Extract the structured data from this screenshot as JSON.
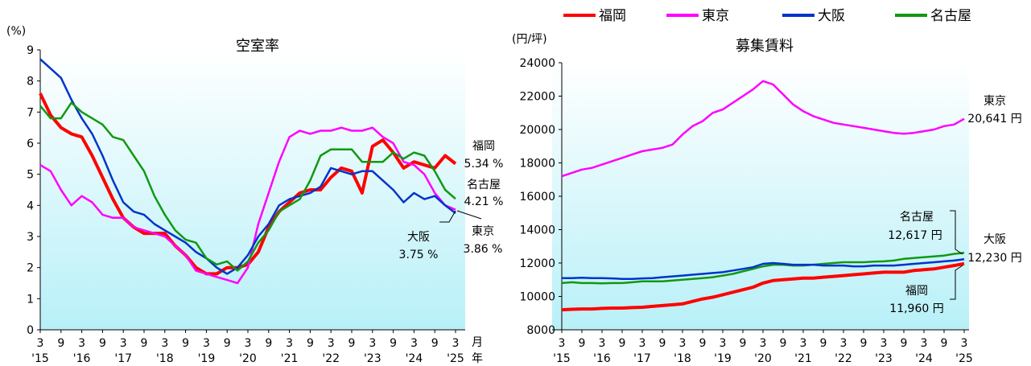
{
  "legend": [
    {
      "name": "福岡",
      "color": "#ff0000"
    },
    {
      "name": "東京",
      "color": "#ff00ff"
    },
    {
      "name": "大阪",
      "color": "#0033cc"
    },
    {
      "name": "名古屋",
      "color": "#119911"
    }
  ],
  "x_axis": {
    "month_labels": [
      "3",
      "9",
      "3",
      "9",
      "3",
      "9",
      "3",
      "9",
      "3",
      "9",
      "3",
      "9",
      "3",
      "9",
      "3",
      "9",
      "3",
      "9",
      "3",
      "9",
      "3"
    ],
    "year_labels": [
      "'15",
      "'16",
      "'17",
      "'18",
      "'19",
      "'20",
      "'21",
      "'22",
      "'23",
      "'24",
      "'25"
    ]
  },
  "chart_data": [
    {
      "type": "line",
      "title": "空室率",
      "yunit": "(%)",
      "ylim": [
        0,
        9
      ],
      "yticks": [
        "0",
        "1",
        "2",
        "3",
        "4",
        "5",
        "6",
        "7",
        "8",
        "9"
      ],
      "xunit_month": "月",
      "xunit_year": "年",
      "x": [
        "2015-03",
        "2015-06",
        "2015-09",
        "2015-12",
        "2016-03",
        "2016-06",
        "2016-09",
        "2016-12",
        "2017-03",
        "2017-06",
        "2017-09",
        "2017-12",
        "2018-03",
        "2018-06",
        "2018-09",
        "2018-12",
        "2019-03",
        "2019-06",
        "2019-09",
        "2019-12",
        "2020-03",
        "2020-06",
        "2020-09",
        "2020-12",
        "2021-03",
        "2021-06",
        "2021-09",
        "2021-12",
        "2022-03",
        "2022-06",
        "2022-09",
        "2022-12",
        "2023-03",
        "2023-06",
        "2023-09",
        "2023-12",
        "2024-03",
        "2024-06",
        "2024-09",
        "2024-12",
        "2025-03"
      ],
      "series": [
        {
          "name": "福岡",
          "values": [
            7.6,
            6.9,
            6.5,
            6.3,
            6.2,
            5.6,
            4.9,
            4.2,
            3.6,
            3.3,
            3.1,
            3.1,
            3.1,
            2.7,
            2.4,
            2.0,
            1.8,
            1.8,
            2.0,
            2.0,
            2.1,
            2.5,
            3.3,
            3.8,
            4.1,
            4.4,
            4.5,
            4.5,
            4.9,
            5.2,
            5.1,
            4.4,
            5.9,
            6.1,
            5.7,
            5.2,
            5.4,
            5.3,
            5.2,
            5.6,
            5.34
          ]
        },
        {
          "name": "東京",
          "values": [
            5.3,
            5.1,
            4.5,
            4.0,
            4.3,
            4.1,
            3.7,
            3.6,
            3.6,
            3.3,
            3.2,
            3.1,
            3.0,
            2.7,
            2.4,
            1.9,
            1.8,
            1.7,
            1.6,
            1.5,
            2.0,
            3.4,
            4.4,
            5.4,
            6.2,
            6.4,
            6.3,
            6.4,
            6.4,
            6.5,
            6.4,
            6.4,
            6.5,
            6.2,
            6.0,
            5.4,
            5.3,
            5.0,
            4.4,
            4.0,
            3.86
          ]
        },
        {
          "name": "大阪",
          "values": [
            8.7,
            8.4,
            8.1,
            7.4,
            6.8,
            6.3,
            5.6,
            4.8,
            4.1,
            3.8,
            3.7,
            3.4,
            3.2,
            3.0,
            2.8,
            2.5,
            2.3,
            2.0,
            1.8,
            2.0,
            2.4,
            3.0,
            3.4,
            4.0,
            4.2,
            4.3,
            4.4,
            4.6,
            5.2,
            5.1,
            5.0,
            5.1,
            5.1,
            4.8,
            4.5,
            4.1,
            4.4,
            4.2,
            4.3,
            4.0,
            3.75
          ]
        },
        {
          "name": "名古屋",
          "values": [
            7.2,
            6.8,
            6.8,
            7.3,
            7.0,
            6.8,
            6.6,
            6.2,
            6.1,
            5.6,
            5.1,
            4.3,
            3.7,
            3.2,
            2.9,
            2.8,
            2.3,
            2.1,
            2.2,
            1.9,
            2.2,
            2.8,
            3.2,
            3.8,
            4.0,
            4.2,
            4.8,
            5.6,
            5.8,
            5.8,
            5.8,
            5.4,
            5.4,
            5.4,
            5.7,
            5.5,
            5.7,
            5.6,
            5.1,
            4.5,
            4.21
          ]
        }
      ],
      "end_labels": [
        {
          "name": "福岡",
          "value": "5.34 %"
        },
        {
          "name": "名古屋",
          "value": "4.21 %"
        },
        {
          "name": "大阪",
          "value": "3.75 %"
        },
        {
          "name": "東京",
          "value": "3.86 %"
        }
      ]
    },
    {
      "type": "line",
      "title": "募集賃料",
      "yunit": "(円/坪)",
      "ylim": [
        8000,
        24000
      ],
      "yticks": [
        "8000",
        "10000",
        "12000",
        "14000",
        "16000",
        "18000",
        "20000",
        "22000",
        "24000"
      ],
      "x": [
        "2015-03",
        "2015-06",
        "2015-09",
        "2015-12",
        "2016-03",
        "2016-06",
        "2016-09",
        "2016-12",
        "2017-03",
        "2017-06",
        "2017-09",
        "2017-12",
        "2018-03",
        "2018-06",
        "2018-09",
        "2018-12",
        "2019-03",
        "2019-06",
        "2019-09",
        "2019-12",
        "2020-03",
        "2020-06",
        "2020-09",
        "2020-12",
        "2021-03",
        "2021-06",
        "2021-09",
        "2021-12",
        "2022-03",
        "2022-06",
        "2022-09",
        "2022-12",
        "2023-03",
        "2023-06",
        "2023-09",
        "2023-12",
        "2024-03",
        "2024-06",
        "2024-09",
        "2024-12",
        "2025-03"
      ],
      "series": [
        {
          "name": "東京",
          "values": [
            17200,
            17400,
            17600,
            17700,
            17900,
            18100,
            18300,
            18500,
            18700,
            18800,
            18900,
            19100,
            19700,
            20200,
            20500,
            21000,
            21200,
            21600,
            22000,
            22400,
            22900,
            22700,
            22100,
            21500,
            21100,
            20800,
            20600,
            20400,
            20300,
            20200,
            20100,
            20000,
            19900,
            19800,
            19750,
            19800,
            19900,
            20000,
            20200,
            20300,
            20641
          ]
        },
        {
          "name": "名古屋",
          "values": [
            10800,
            10850,
            10800,
            10800,
            10780,
            10800,
            10800,
            10850,
            10900,
            10900,
            10900,
            10950,
            11000,
            11050,
            11100,
            11150,
            11250,
            11350,
            11500,
            11650,
            11800,
            11900,
            11900,
            11850,
            11850,
            11900,
            11950,
            12000,
            12050,
            12050,
            12050,
            12080,
            12100,
            12150,
            12250,
            12300,
            12350,
            12400,
            12450,
            12550,
            12617
          ]
        },
        {
          "name": "大阪",
          "values": [
            11100,
            11100,
            11120,
            11100,
            11100,
            11080,
            11050,
            11050,
            11080,
            11100,
            11150,
            11200,
            11250,
            11300,
            11350,
            11400,
            11450,
            11550,
            11650,
            11750,
            11950,
            12000,
            11950,
            11900,
            11900,
            11900,
            11850,
            11850,
            11850,
            11800,
            11800,
            11850,
            11850,
            11850,
            11900,
            11950,
            12000,
            12050,
            12100,
            12150,
            12230
          ]
        },
        {
          "name": "福岡",
          "values": [
            9200,
            9230,
            9250,
            9250,
            9280,
            9300,
            9300,
            9330,
            9350,
            9400,
            9450,
            9500,
            9550,
            9700,
            9850,
            9950,
            10100,
            10250,
            10400,
            10550,
            10800,
            10950,
            11000,
            11050,
            11100,
            11100,
            11150,
            11200,
            11250,
            11300,
            11350,
            11400,
            11450,
            11450,
            11450,
            11550,
            11600,
            11650,
            11750,
            11850,
            11960
          ]
        }
      ],
      "end_labels": [
        {
          "name": "東京",
          "value": "20,641 円"
        },
        {
          "name": "名古屋",
          "value": "12,617 円"
        },
        {
          "name": "大阪",
          "value": "12,230 円"
        },
        {
          "name": "福岡",
          "value": "11,960 円"
        }
      ]
    }
  ]
}
